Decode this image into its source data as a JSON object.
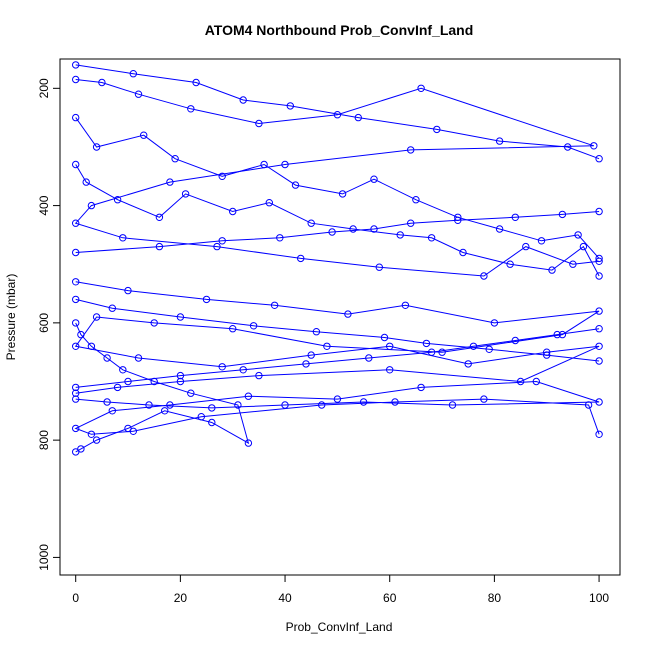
{
  "chart_data": {
    "type": "scatter",
    "title": "ATOM4 Northbound Prob_ConvInf_Land",
    "xlabel": "Prob_ConvInf_Land",
    "ylabel": "Pressure (mbar)",
    "xlim": [
      -3,
      104
    ],
    "ylim": [
      1030,
      150
    ],
    "y_axis_reversed": true,
    "xticks": [
      0,
      20,
      40,
      60,
      80,
      100
    ],
    "yticks": [
      200,
      400,
      600,
      800,
      1000
    ],
    "grid": false,
    "legend": "none",
    "marker": "open-circle",
    "connected": true,
    "color": "#0000FF",
    "series": [
      {
        "x": [
          0,
          5,
          12,
          22,
          35,
          50,
          66,
          99,
          64,
          40,
          18,
          3,
          0,
          9,
          27,
          43,
          58,
          78,
          86,
          95,
          100
        ],
        "y": [
          185,
          190,
          210,
          235,
          260,
          245,
          200,
          298,
          305,
          330,
          360,
          400,
          430,
          455,
          470,
          490,
          505,
          520,
          470,
          500,
          495
        ]
      },
      {
        "x": [
          0,
          10,
          25,
          38,
          52,
          63,
          80,
          100,
          93,
          70,
          48,
          30,
          15,
          4,
          0,
          12,
          28,
          45,
          60,
          75,
          90,
          100,
          85,
          60,
          35,
          20,
          8,
          0
        ],
        "y": [
          530,
          545,
          560,
          570,
          585,
          570,
          600,
          580,
          620,
          650,
          640,
          610,
          600,
          590,
          640,
          660,
          675,
          655,
          640,
          670,
          650,
          640,
          700,
          680,
          690,
          700,
          710,
          720
        ]
      },
      {
        "x": [
          0,
          6,
          14,
          26,
          40,
          55,
          72,
          100,
          88,
          66,
          50,
          33,
          18,
          7,
          0,
          3,
          11,
          24,
          47,
          61,
          78,
          98,
          100
        ],
        "y": [
          730,
          735,
          740,
          745,
          740,
          735,
          740,
          735,
          700,
          710,
          730,
          725,
          740,
          750,
          780,
          790,
          785,
          760,
          740,
          735,
          730,
          740,
          790
        ]
      },
      {
        "x": [
          0,
          2,
          8,
          16,
          21,
          30,
          37,
          45,
          53,
          62,
          68,
          74,
          83,
          91,
          97,
          100
        ],
        "y": [
          330,
          360,
          390,
          420,
          380,
          410,
          395,
          430,
          440,
          450,
          455,
          480,
          500,
          510,
          470,
          520
        ]
      },
      {
        "x": [
          0,
          4,
          13,
          19,
          28,
          36,
          42,
          51,
          57,
          65,
          73,
          81,
          89,
          96,
          100
        ],
        "y": [
          250,
          300,
          280,
          320,
          350,
          330,
          365,
          380,
          355,
          390,
          420,
          440,
          460,
          450,
          490
        ]
      },
      {
        "x": [
          0,
          1,
          3,
          6,
          9,
          15,
          22,
          31,
          33,
          26,
          17,
          10,
          4,
          1,
          0
        ],
        "y": [
          600,
          620,
          640,
          660,
          680,
          700,
          720,
          740,
          805,
          770,
          750,
          780,
          800,
          815,
          820
        ]
      },
      {
        "x": [
          0,
          7,
          20,
          34,
          46,
          59,
          67,
          79,
          90,
          100
        ],
        "y": [
          560,
          575,
          590,
          605,
          615,
          625,
          635,
          645,
          655,
          665
        ]
      },
      {
        "x": [
          100,
          92,
          84,
          76,
          68,
          56,
          44,
          32,
          20,
          10,
          0
        ],
        "y": [
          610,
          620,
          630,
          640,
          650,
          660,
          670,
          680,
          690,
          700,
          710
        ]
      },
      {
        "x": [
          0,
          16,
          28,
          39,
          49,
          57,
          64,
          73,
          84,
          93,
          100
        ],
        "y": [
          480,
          470,
          460,
          455,
          445,
          440,
          430,
          425,
          420,
          415,
          410
        ]
      },
      {
        "x": [
          0,
          11,
          23,
          32,
          41,
          54,
          69,
          81,
          94,
          100
        ],
        "y": [
          160,
          175,
          190,
          220,
          230,
          250,
          270,
          290,
          300,
          320
        ]
      }
    ]
  }
}
